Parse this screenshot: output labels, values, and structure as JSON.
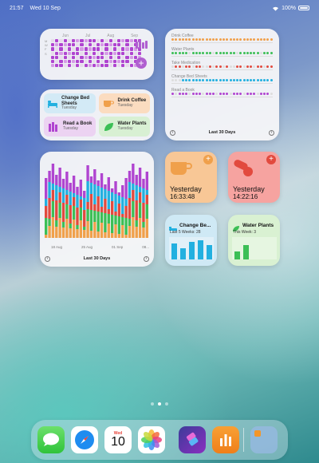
{
  "status_bar": {
    "time": "21:57",
    "date": "Wed 10 Sep",
    "battery": "100%"
  },
  "heatmap_widget": {
    "months": [
      "Jun",
      "Jul",
      "Aug",
      "Sep"
    ],
    "day_labels": [
      "M",
      "",
      "W",
      "",
      "F",
      "",
      "S"
    ]
  },
  "habits_widget": {
    "items": [
      {
        "name": "Change Bed Sheets",
        "day": "Tuesday",
        "color": "#d3eaf6",
        "icon": "bed-icon"
      },
      {
        "name": "Drink Coffee",
        "day": "Tuesday",
        "color": "#fbdcc0",
        "icon": "coffee-icon"
      },
      {
        "name": "Read a Book",
        "day": "Tuesday",
        "color": "#ecd3f2",
        "icon": "books-icon"
      },
      {
        "name": "Water Plants",
        "day": "Tuesday",
        "color": "#d8f0d3",
        "icon": "leaf-icon"
      }
    ]
  },
  "dots_widget": {
    "rows": [
      {
        "label": "Drink Coffee",
        "color": "#f0a04b"
      },
      {
        "label": "Water Plants",
        "color": "#3cbf56"
      },
      {
        "label": "Take Medication",
        "color": "#e24a3e"
      },
      {
        "label": "Change Bed Sheets",
        "color": "#22b0e0"
      },
      {
        "label": "Read a Book",
        "color": "#b044d0"
      }
    ],
    "footer": "Last 30 Days"
  },
  "bars_widget": {
    "ticks": [
      "18 Aug",
      "25 Aug",
      "01 Sep",
      "08..."
    ],
    "footer": "Last 30 Days",
    "colors": [
      "#f0a04b",
      "#3cbf56",
      "#e24a3e",
      "#22b0e0",
      "#b044d0"
    ]
  },
  "coffee_tile": {
    "label": "Yesterday",
    "time": "16:33:48",
    "accent": "#f0a04b"
  },
  "medication_tile": {
    "label": "Yesterday",
    "time": "14:22:16",
    "accent": "#e24a3e"
  },
  "sheets_tile": {
    "name": "Change Be...",
    "sub": "Last 5 Weeks: 28",
    "accent": "#22b0e0"
  },
  "water_tile": {
    "name": "Water Plants",
    "sub": "This Week: 3",
    "accent": "#3cbf56"
  },
  "dock": {
    "apps": [
      "Messages",
      "Safari",
      "Calendar",
      "Photos",
      "Shortcuts",
      "Habits",
      "Folder"
    ],
    "calendar_day": "Wed",
    "calendar_date": "10"
  }
}
